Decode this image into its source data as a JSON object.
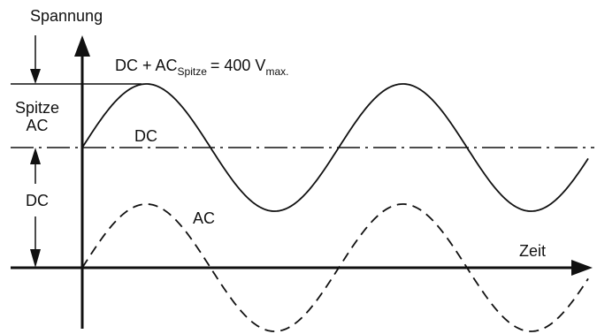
{
  "labels": {
    "y_axis": "Spannung",
    "x_axis": "Zeit",
    "formula_main": "DC + AC",
    "formula_sub_spitze": "Spitze",
    "formula_eq": "= 400 V",
    "formula_sub_max": "max.",
    "dc_line": "DC",
    "ac_curve": "AC",
    "spitze": "Spitze",
    "ac_side": "AC",
    "dc_side": "DC"
  },
  "colors": {
    "ink": "#111111",
    "background": "#ffffff"
  }
}
